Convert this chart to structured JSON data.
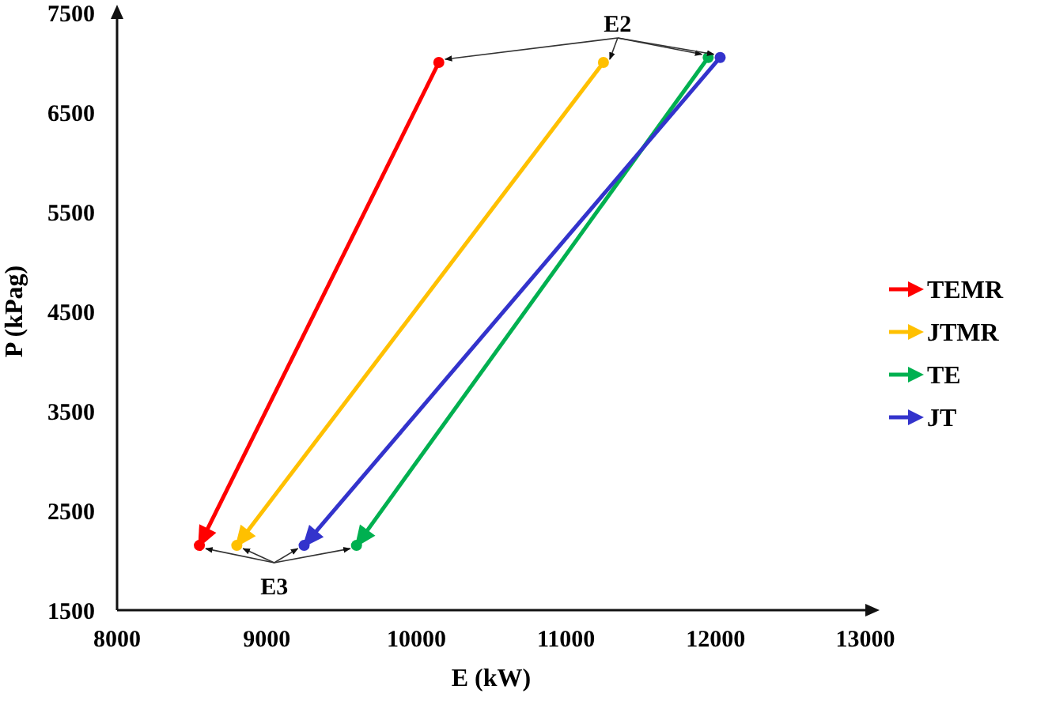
{
  "chart_data": {
    "type": "line",
    "xlabel": "E (kW)",
    "ylabel": "P (kPag)",
    "xlim": [
      8000,
      13000
    ],
    "xticks": [
      8000,
      9000,
      10000,
      11000,
      12000,
      13000
    ],
    "ylim": [
      1500,
      7500
    ],
    "yticks": [
      1500,
      2500,
      3500,
      4500,
      5500,
      6500,
      7500
    ],
    "series": [
      {
        "name": "TEMR",
        "color": "#ff0000",
        "x": [
          10150,
          8550
        ],
        "values": [
          7000,
          2150
        ]
      },
      {
        "name": "JTMR",
        "color": "#ffc000",
        "x": [
          11250,
          8800
        ],
        "values": [
          7000,
          2150
        ]
      },
      {
        "name": "TE",
        "color": "#00b050",
        "x": [
          11950,
          9600
        ],
        "values": [
          7050,
          2150
        ]
      },
      {
        "name": "JT",
        "color": "#3333cc",
        "x": [
          12030,
          9250
        ],
        "values": [
          7050,
          2150
        ]
      }
    ],
    "annotations": [
      {
        "text": "E2",
        "x": 10150,
        "y": 7000
      },
      {
        "text": "E3",
        "x": 8550,
        "y": 2150
      }
    ],
    "legend": "right",
    "marker": "circle",
    "grid": false
  }
}
